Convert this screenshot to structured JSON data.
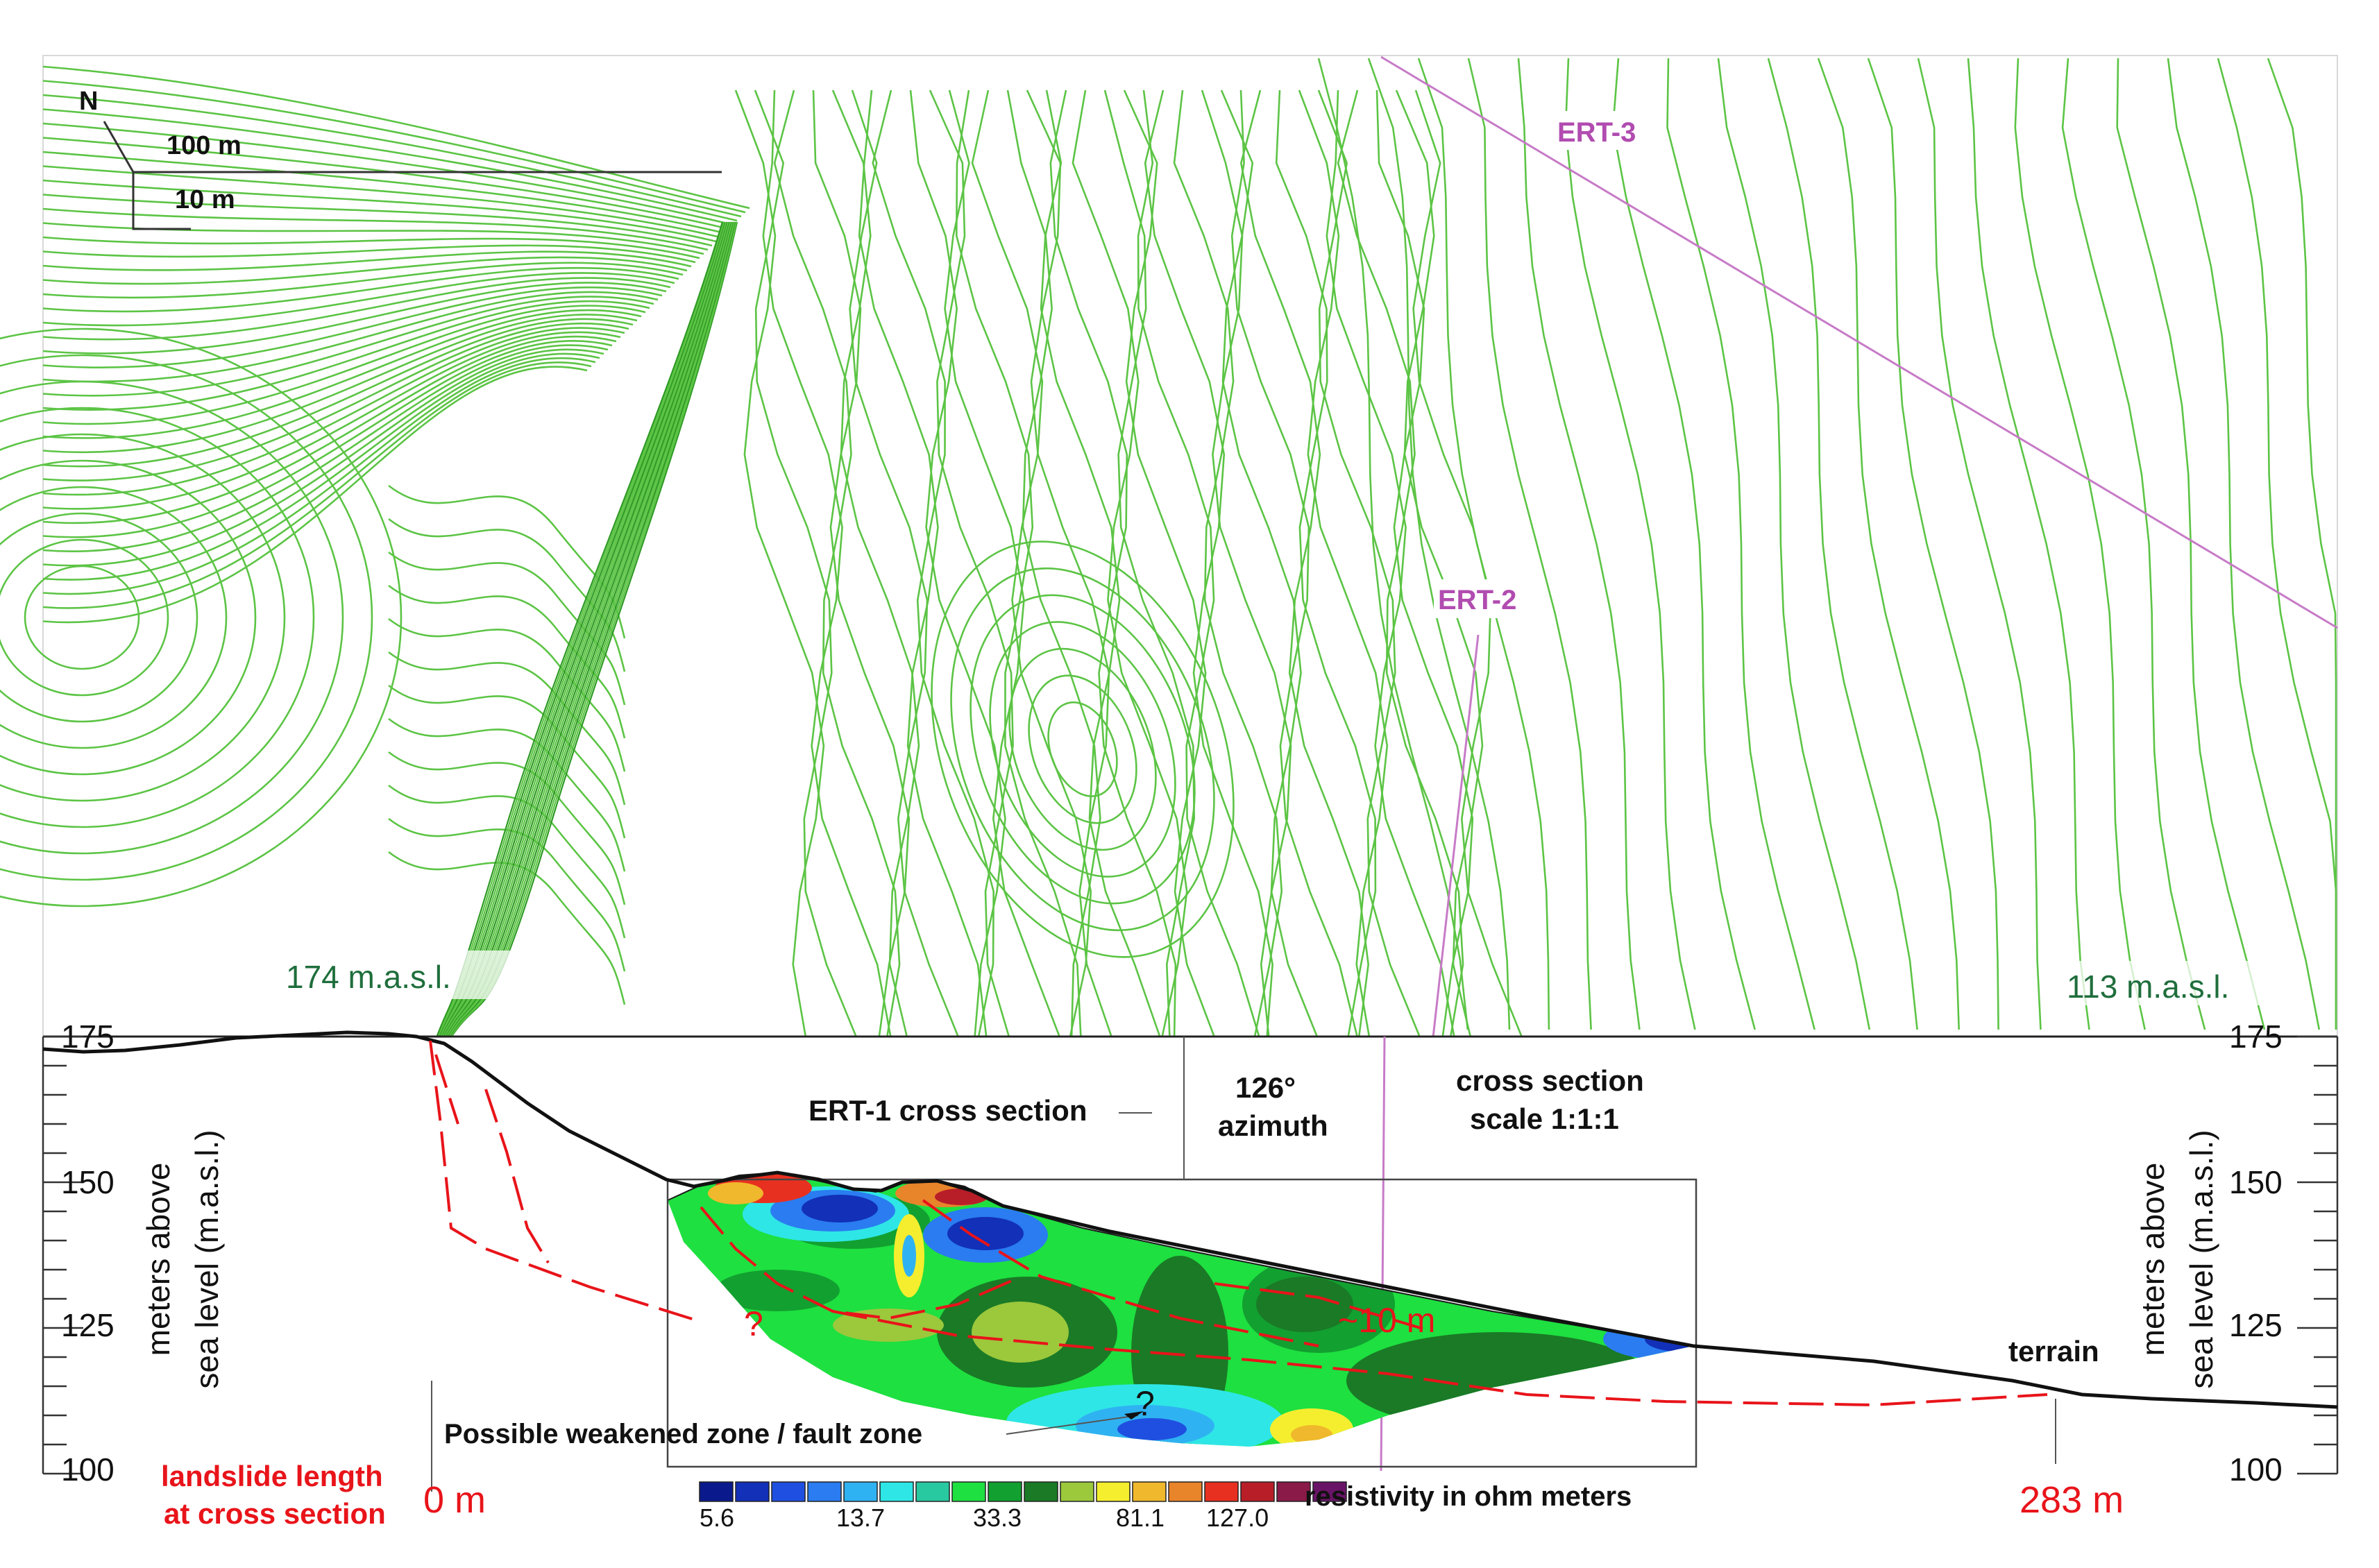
{
  "map": {
    "north_label": "N",
    "scale_100": "100 m",
    "scale_10": "10 m",
    "elev_left": "174 m.a.s.l.",
    "elev_right": "113 m.a.s.l.",
    "ert2_label": "ERT-2",
    "ert3_label": "ERT-3",
    "contour_color": "#5cc445",
    "line_color": "#c77bc7"
  },
  "section": {
    "ert1_label": "ERT-1 cross section",
    "azimuth_value": "126°",
    "azimuth_word": "azimuth",
    "scale_line1": "cross section",
    "scale_line2": "scale 1:1:1",
    "terrain_label": "terrain",
    "fault_label": "Possible weakened zone / fault zone",
    "q_mark_1": "?",
    "q_mark_2": "?",
    "depth_label": "~10 m",
    "landslide_line1": "landslide length",
    "landslide_line2": "at cross section",
    "start_m": "0 m",
    "end_m": "283 m",
    "axis_left_line1": "meters above",
    "axis_left_line2": "sea level (m.a.s.l.)",
    "axis_right_line1": "meters above",
    "axis_right_line2": "sea level (m.a.s.l.)",
    "ticks_left": [
      "175",
      "150",
      "125",
      "100"
    ],
    "ticks_right": [
      "175",
      "150",
      "125",
      "100"
    ]
  },
  "legend": {
    "title": "resistivity in ohm meters",
    "labels": [
      "5.6",
      "13.7",
      "33.3",
      "81.1",
      "127.0"
    ],
    "colors": [
      "#0a1a8c",
      "#1230b8",
      "#1f4fe0",
      "#2a7cf0",
      "#2fb2f2",
      "#2ee6e6",
      "#28c8a0",
      "#1ee040",
      "#12a030",
      "#1a7a26",
      "#9cc83c",
      "#f5ee2e",
      "#f0b82c",
      "#e8842a",
      "#e83020",
      "#b81e28",
      "#8a1a48",
      "#6a1468"
    ]
  }
}
